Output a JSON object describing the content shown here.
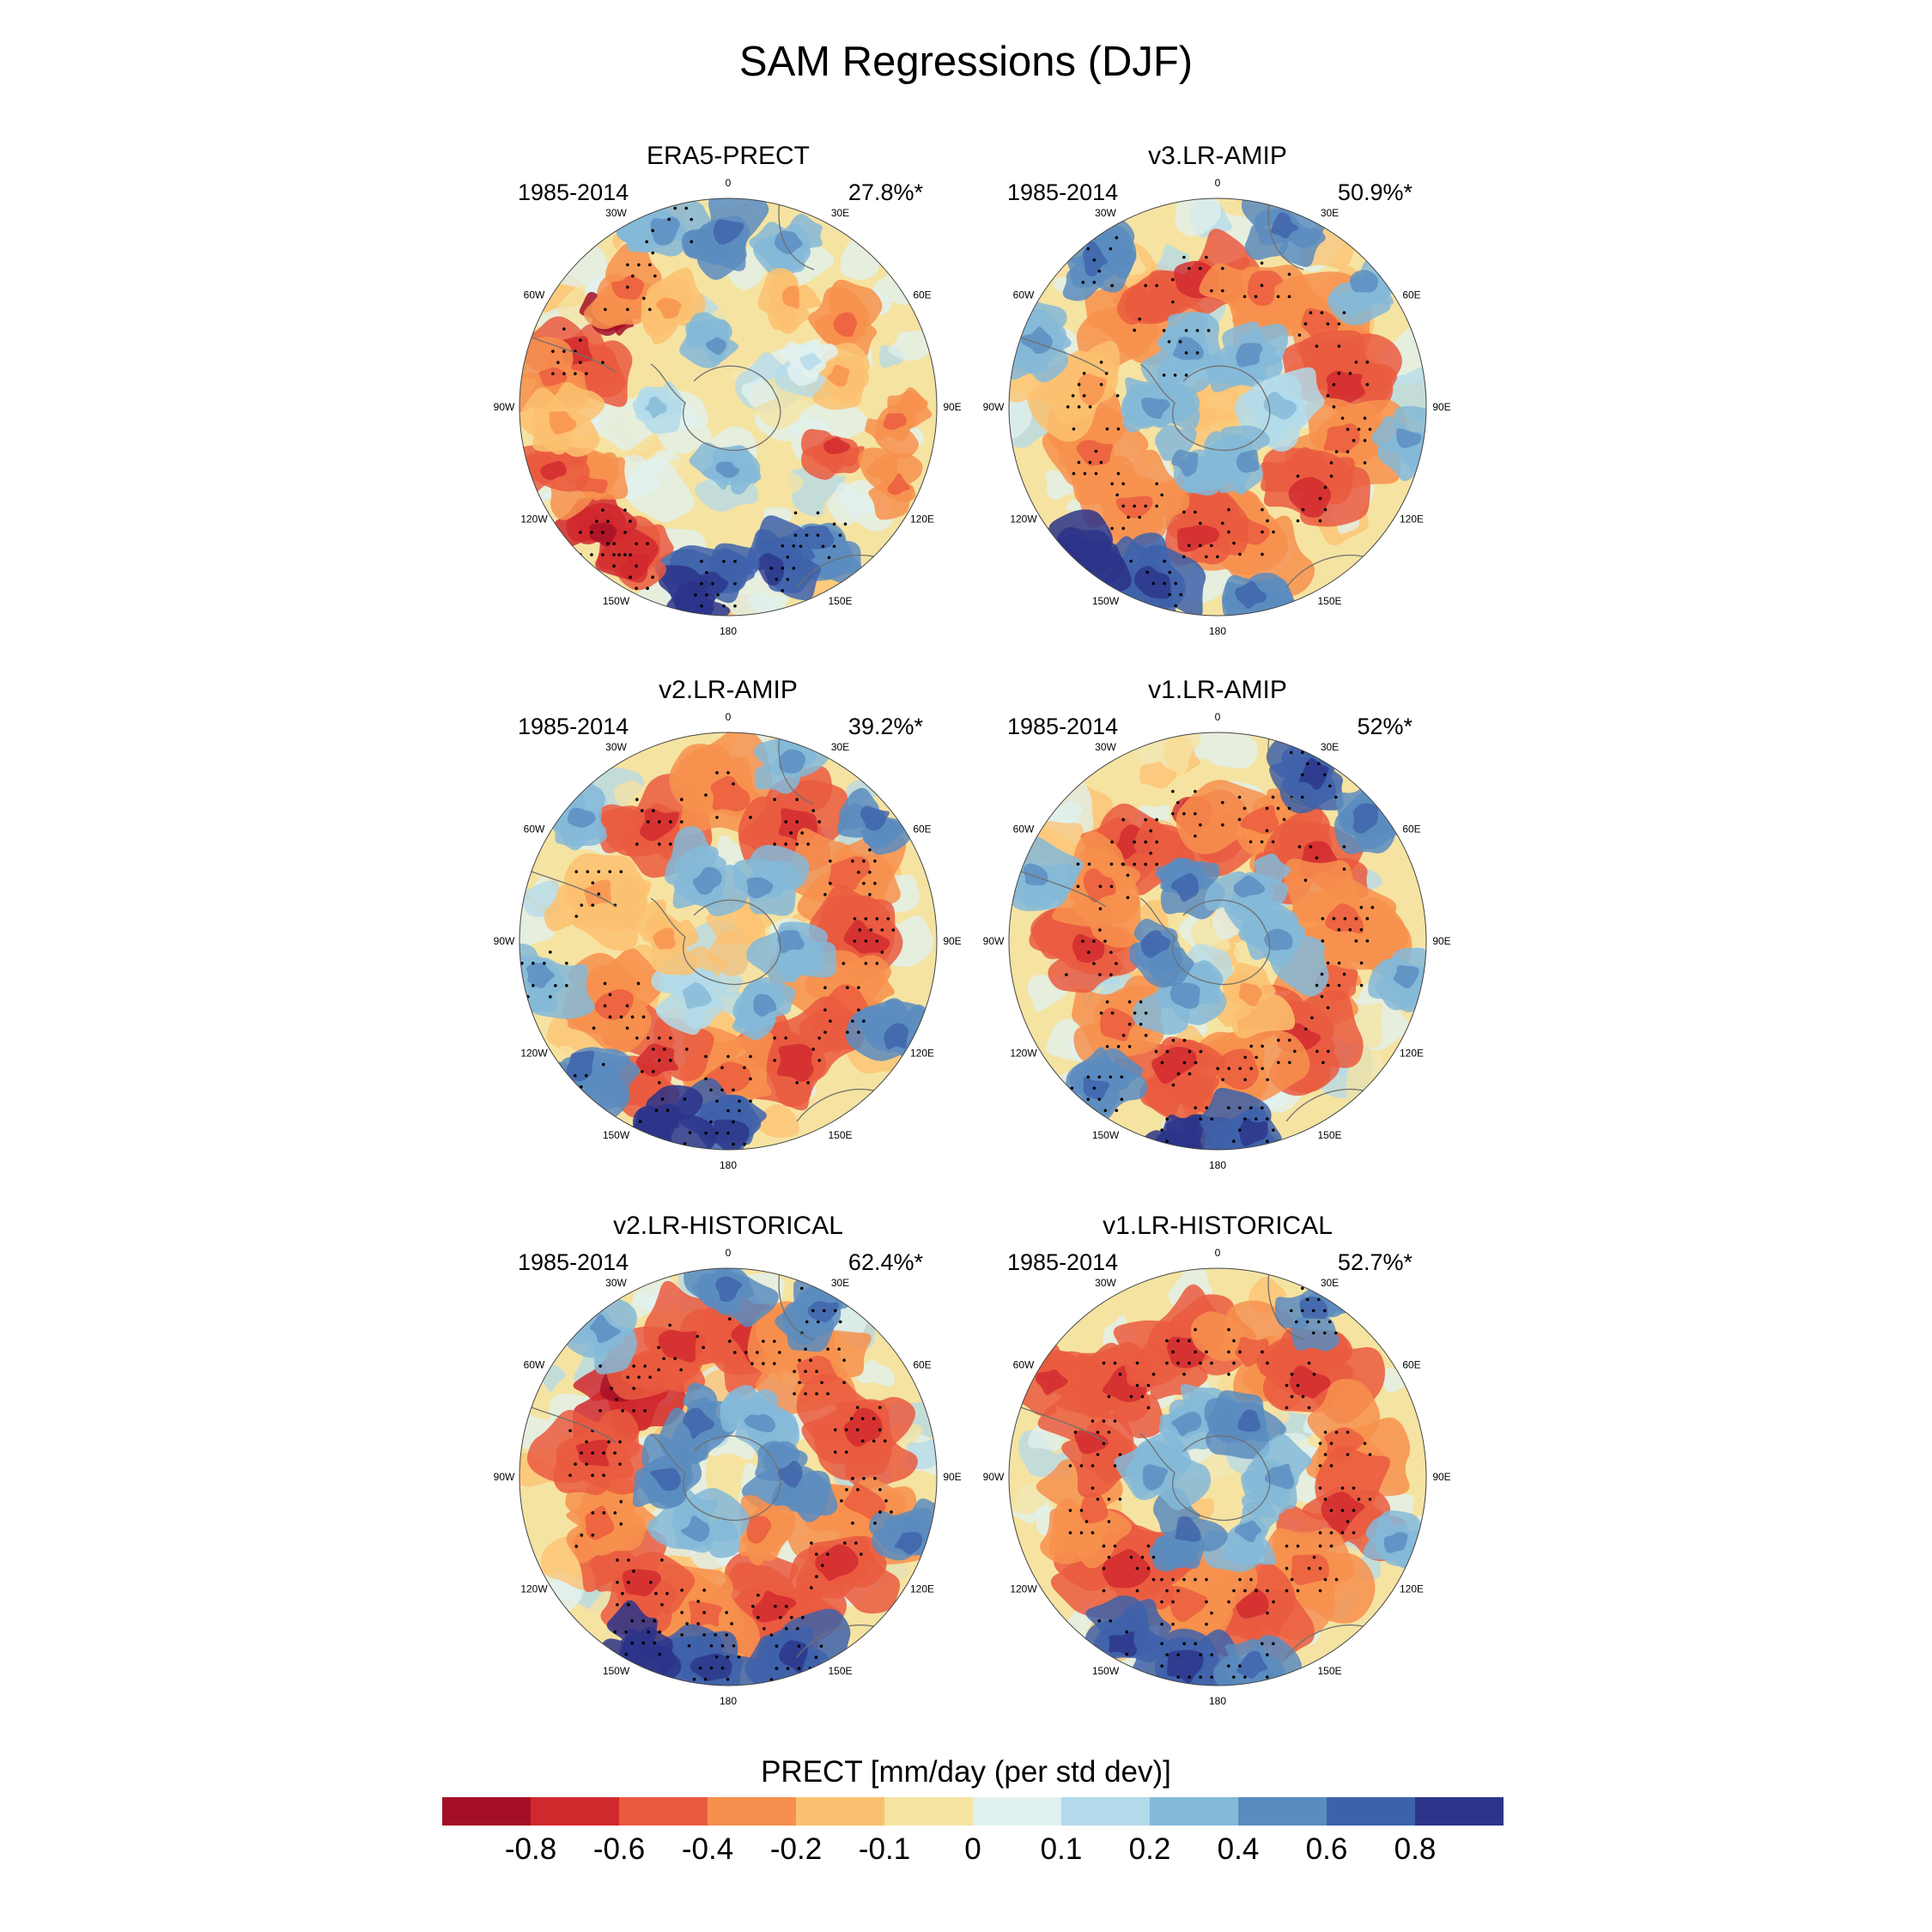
{
  "figure": {
    "title": "SAM Regressions (DJF)"
  },
  "panels": [
    {
      "title": "ERA5-PRECT",
      "period": "1985-2014",
      "variance": "27.8%*"
    },
    {
      "title": "v3.LR-AMIP",
      "period": "1985-2014",
      "variance": "50.9%*"
    },
    {
      "title": "v2.LR-AMIP",
      "period": "1985-2014",
      "variance": "39.2%*"
    },
    {
      "title": "v1.LR-AMIP",
      "period": "1985-2014",
      "variance": "52%*"
    },
    {
      "title": "v2.LR-HISTORICAL",
      "period": "1985-2014",
      "variance": "62.4%*"
    },
    {
      "title": "v1.LR-HISTORICAL",
      "period": "1985-2014",
      "variance": "52.7%*"
    }
  ],
  "longitude_labels": [
    "0",
    "30E",
    "60E",
    "90E",
    "120E",
    "150E",
    "180",
    "150W",
    "120W",
    "90W",
    "60W",
    "30W"
  ],
  "colorbar": {
    "title": "PRECT [mm/day (per std dev)]",
    "ticks": [
      "-0.8",
      "-0.6",
      "-0.4",
      "-0.2",
      "-0.1",
      "0",
      "0.1",
      "0.2",
      "0.4",
      "0.6",
      "0.8"
    ],
    "colors": [
      "#a50f26",
      "#d1282e",
      "#ea5a3f",
      "#f7904e",
      "#fcc170",
      "#f5e3a2",
      "#e0f1f0",
      "#b3daea",
      "#84b9d8",
      "#5a8cc0",
      "#3e62aa",
      "#2c3489"
    ]
  }
}
